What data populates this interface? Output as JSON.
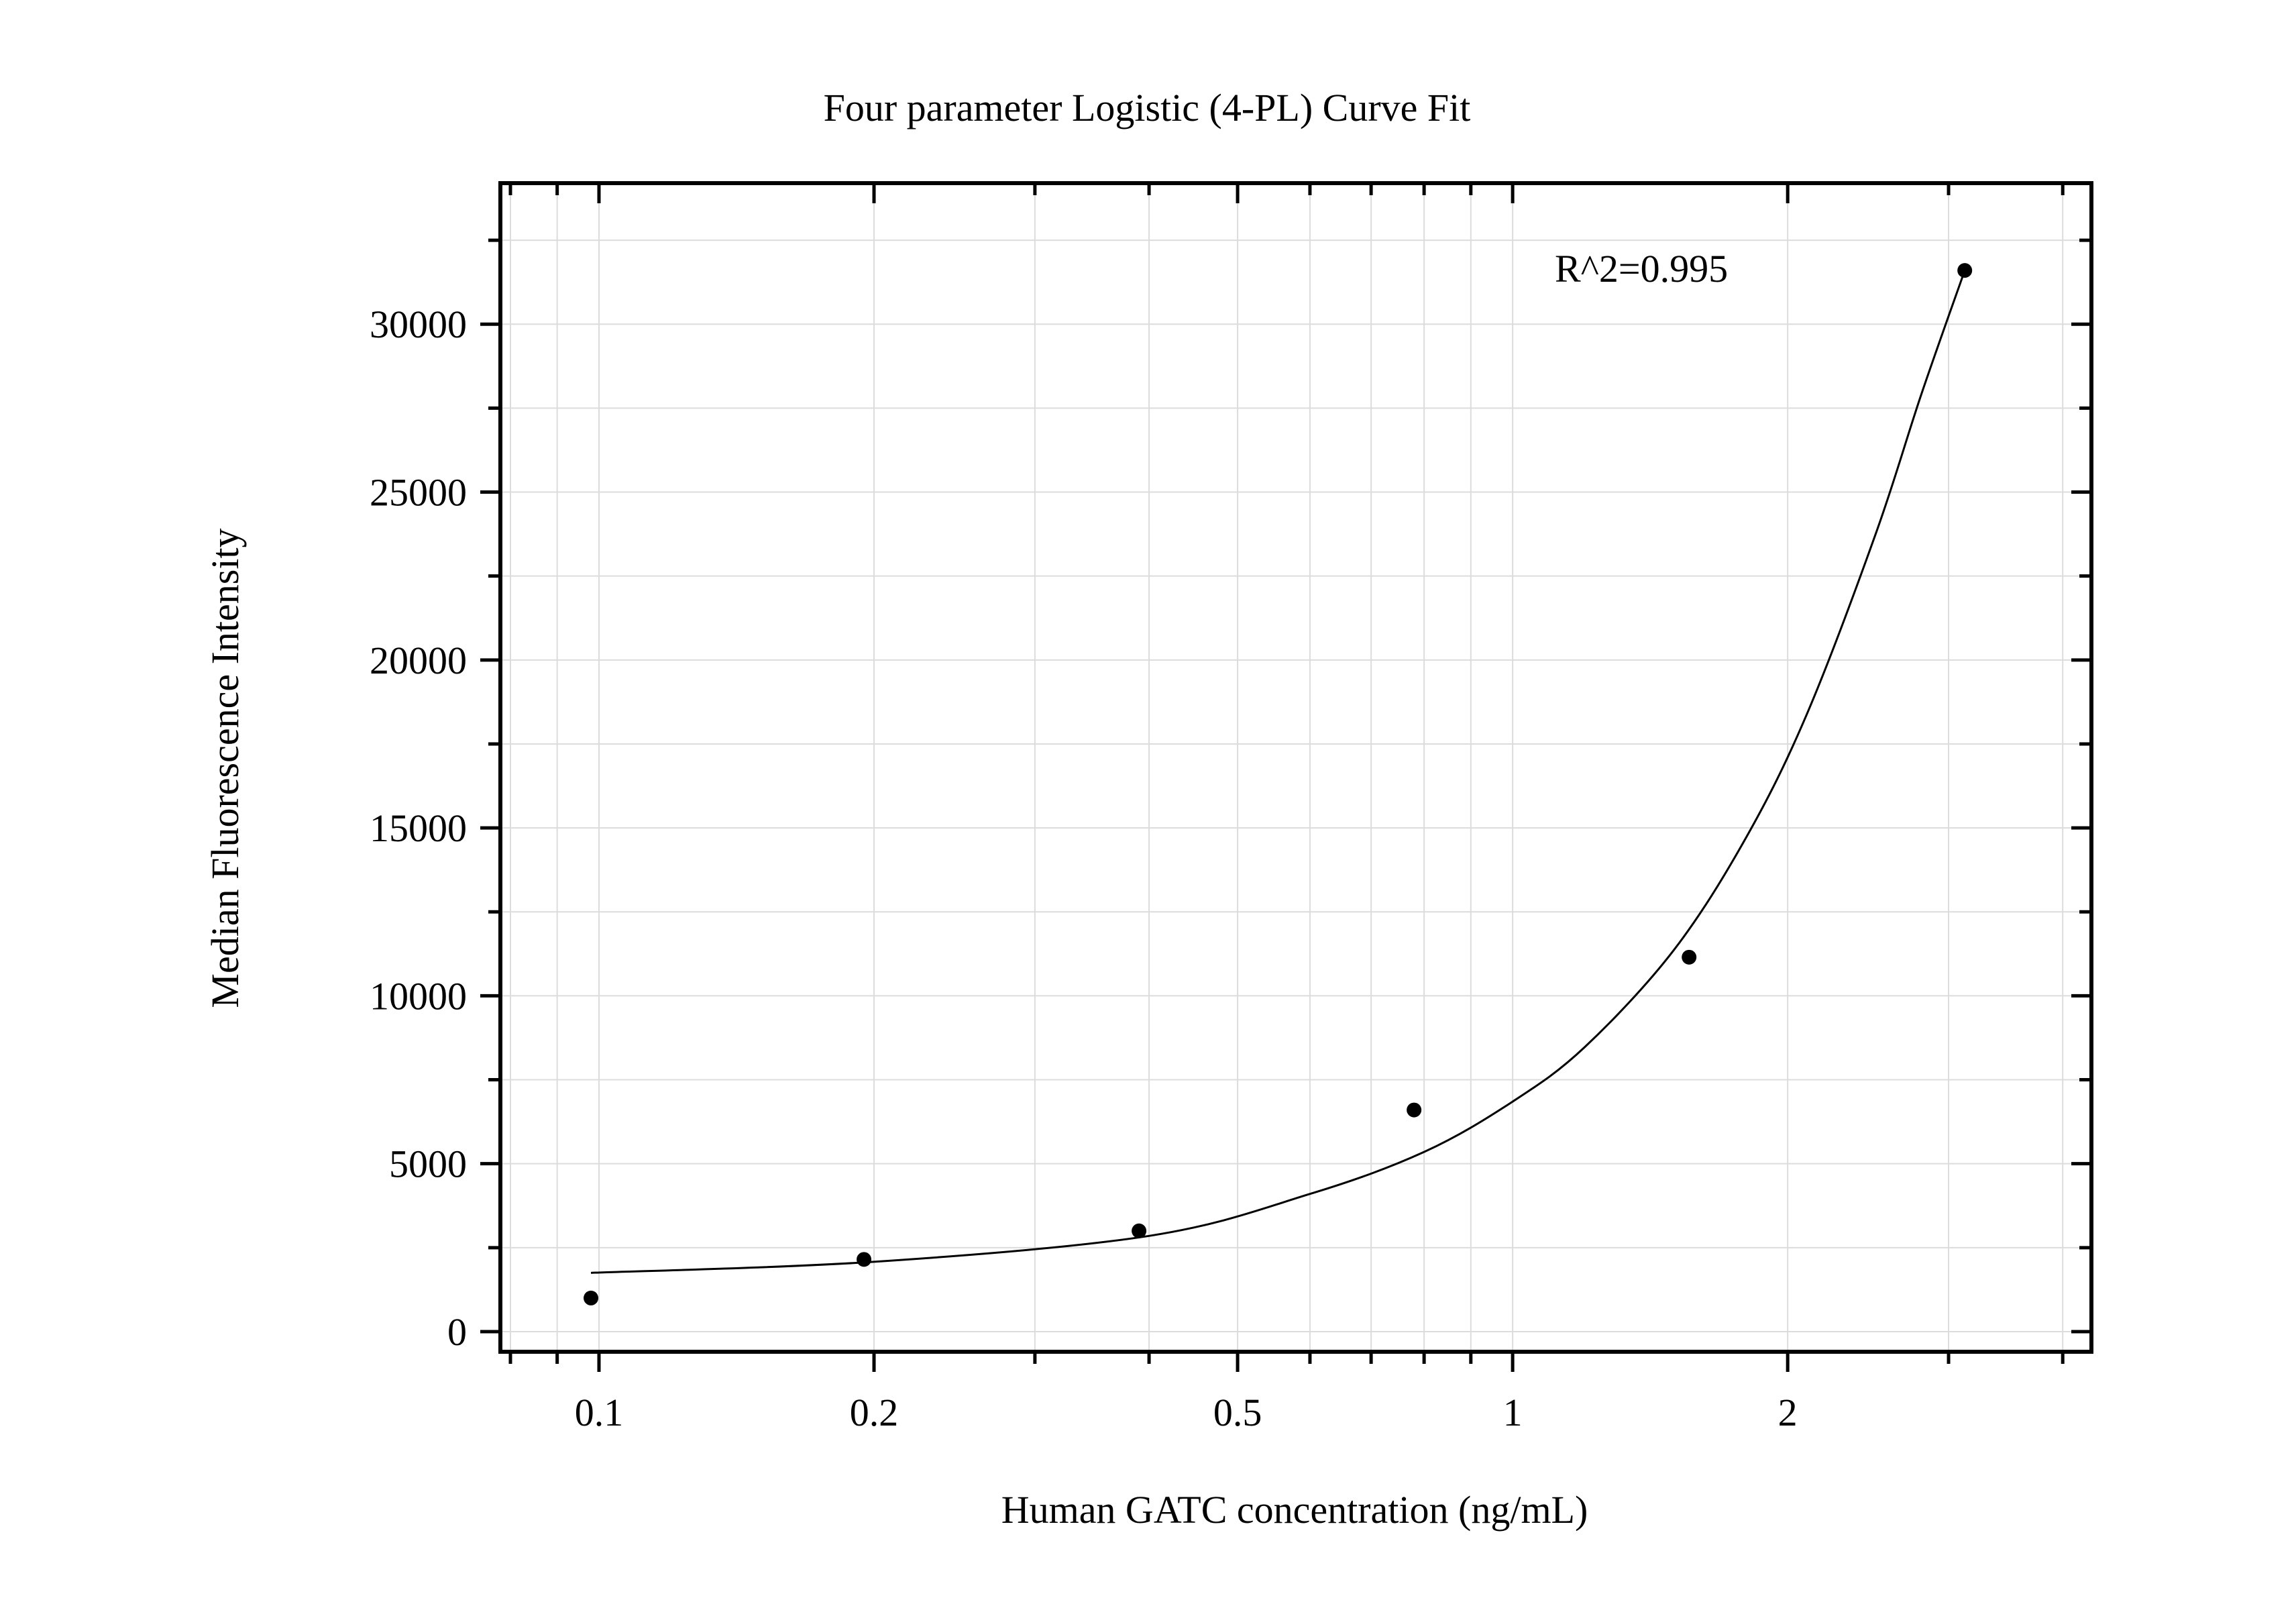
{
  "chart_data": {
    "type": "scatter",
    "title": "Four parameter Logistic (4-PL) Curve Fit",
    "xlabel": "Human GATC concentration (ng/mL)",
    "ylabel": "Median Fluorescence Intensity",
    "x_scale": "log",
    "xlim": [
      0.078,
      4.3
    ],
    "ylim": [
      -600,
      34200
    ],
    "x_ticks": [
      0.1,
      0.2,
      0.5,
      1,
      2
    ],
    "x_tick_labels": [
      "0.1",
      "0.2",
      "0.5",
      "1",
      "2"
    ],
    "y_ticks": [
      0,
      5000,
      10000,
      15000,
      20000,
      25000,
      30000
    ],
    "y_tick_labels": [
      "0",
      "5000",
      "10000",
      "15000",
      "20000",
      "25000",
      "30000"
    ],
    "grid": true,
    "annotation": "R^2=0.995",
    "series": [
      {
        "type": "scatter",
        "x": [
          0.098,
          0.195,
          0.39,
          0.78,
          1.56,
          3.125
        ],
        "y": [
          1000,
          2150,
          3000,
          6600,
          11150,
          31600
        ]
      },
      {
        "type": "line",
        "x": [
          0.098,
          0.2,
          0.4,
          0.6,
          0.8,
          1.0,
          1.2,
          1.5,
          1.8,
          2.1,
          2.5,
          2.8,
          3.125
        ],
        "y": [
          1750,
          2080,
          2850,
          4100,
          5350,
          6850,
          8480,
          11350,
          14700,
          18400,
          23800,
          27900,
          31600
        ]
      }
    ],
    "colors": {
      "marks": "#000000",
      "grid": "#dcdcdc",
      "axis": "#000000"
    }
  }
}
